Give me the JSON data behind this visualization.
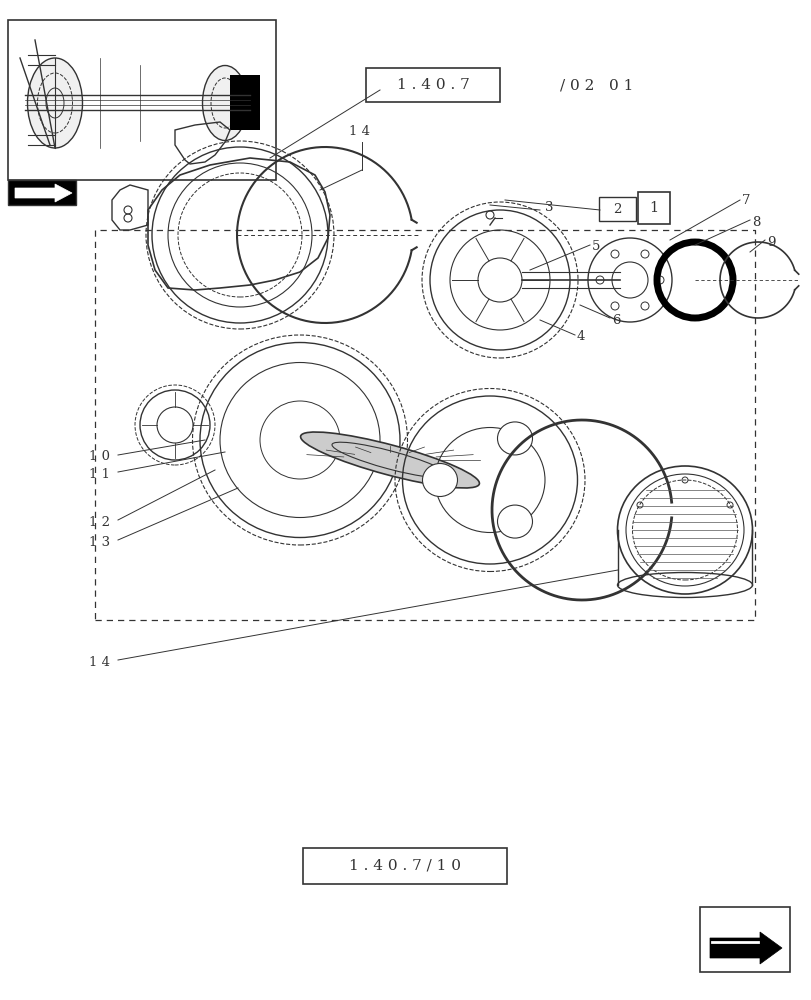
{
  "bg_color": "#ffffff",
  "title_box1": "1 . 4 0 . 7",
  "title_suffix1": "/ 0 2   0 1",
  "title_box2": "1 . 4 0 . 7 / 1 0",
  "part_labels": [
    "1",
    "2",
    "3",
    "4",
    "5",
    "6",
    "7",
    "8",
    "9",
    "1 0",
    "1 1",
    "1 2",
    "1 3",
    "1 4"
  ],
  "line_color": "#333333",
  "text_color": "#333333"
}
